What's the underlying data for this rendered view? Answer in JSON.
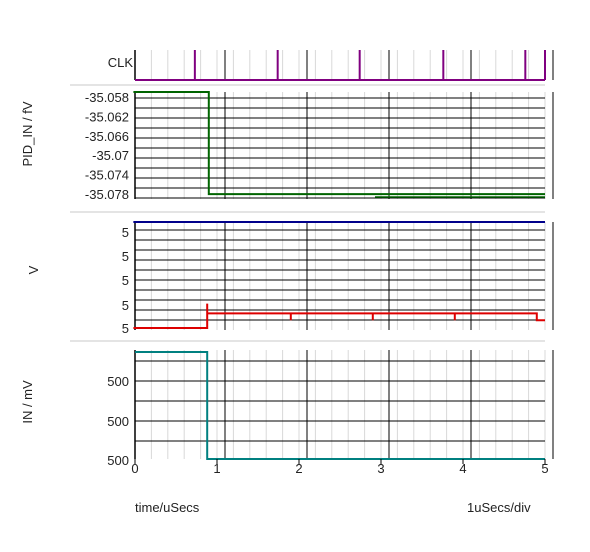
{
  "chart_data": [
    {
      "type": "line",
      "id": "clk",
      "ylabel": "CLK",
      "color": "#800080",
      "y_ticks": [],
      "x_range": [
        0,
        5
      ]
    },
    {
      "type": "line",
      "id": "pid",
      "ylabel": "PID_IN / fV",
      "color": "#006400",
      "y_range": [
        -35.079,
        -35.057
      ],
      "y_ticks": [
        "-35.058",
        "-35.062",
        "-35.066",
        "-35.07",
        "-35.074",
        "-35.078"
      ],
      "y_tick_values": [
        -35.058,
        -35.062,
        -35.066,
        -35.07,
        -35.074,
        -35.078
      ],
      "series": [
        {
          "x": [
            -0.02,
            0.9,
            0.9,
            5
          ],
          "y": [
            -35.057,
            -35.057,
            -35.078,
            -35.078
          ]
        }
      ],
      "x_range": [
        0,
        5
      ]
    },
    {
      "type": "line",
      "id": "v",
      "ylabel": "V",
      "y_ticks": [
        "5",
        "5",
        "5",
        "5",
        "5"
      ],
      "y_tick_values": [
        4,
        3,
        2,
        1,
        0
      ],
      "y_range": [
        -0.2,
        4.6
      ],
      "series": [
        {
          "name": "",
          "color": "#00008B",
          "x": [
            -0.02,
            5
          ],
          "y": [
            4.6,
            4.6
          ]
        },
        {
          "name": "",
          "color": "#DD0000",
          "x": [
            -0.02,
            0.88,
            0.88,
            0.88,
            0.88,
            1.9,
            1.9,
            1.9,
            1.9,
            2.9,
            2.9,
            2.9,
            2.9,
            3.9,
            3.9,
            3.9,
            3.9,
            4.9,
            4.9,
            5
          ],
          "y": [
            0,
            0,
            1.25,
            0,
            0.75,
            0.75,
            0.4,
            0.4,
            0.75,
            0.75,
            0.4,
            0.4,
            0.75,
            0.75,
            0.4,
            0.4,
            0.75,
            0.75,
            0.4,
            0.4
          ]
        }
      ],
      "x_range": [
        0,
        5
      ]
    },
    {
      "type": "line",
      "id": "in",
      "ylabel": "IN / mV",
      "color": "#008080",
      "y_ticks": [
        "500",
        "500",
        "500"
      ],
      "y_tick_values": [
        2,
        1,
        0
      ],
      "y_range": [
        0,
        2.7
      ],
      "series": [
        {
          "x": [
            0,
            0.88,
            0.88,
            5
          ],
          "y": [
            2.7,
            2.7,
            0,
            0
          ]
        }
      ],
      "x_range": [
        0,
        5
      ],
      "x_ticks": [
        "0",
        "1",
        "2",
        "3",
        "4",
        "5"
      ],
      "x_tick_values": [
        0,
        1,
        2,
        3,
        4,
        5
      ]
    }
  ],
  "footer": {
    "xlabel": "time/uSecs",
    "scale": "1uSecs/div"
  }
}
